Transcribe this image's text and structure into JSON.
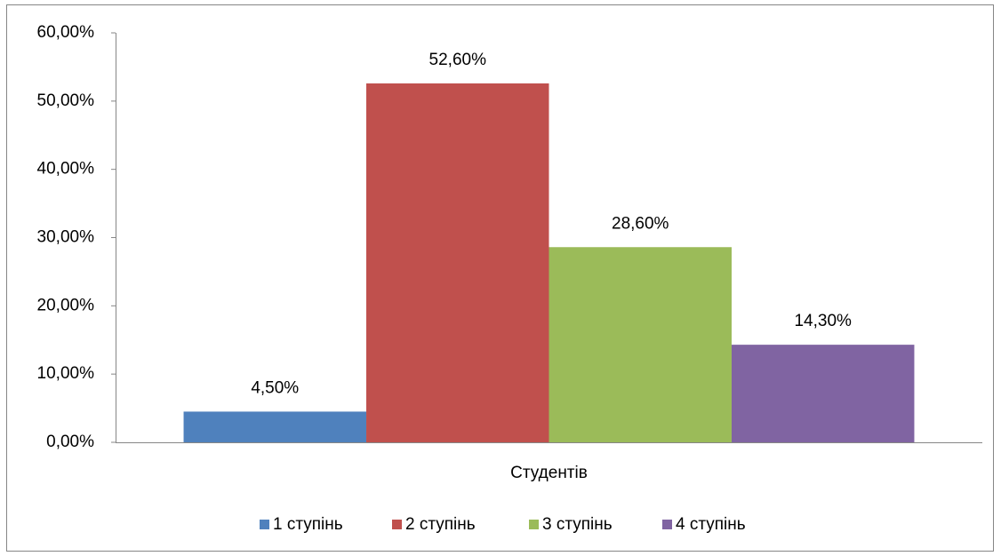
{
  "chart_data": {
    "type": "bar",
    "categories": [
      "Студентів"
    ],
    "series": [
      {
        "name": "1 ступінь",
        "color": "#4f81bd",
        "values": [
          4.5
        ],
        "value_labels": [
          "4,50%"
        ]
      },
      {
        "name": "2 ступінь",
        "color": "#c0504d",
        "values": [
          52.6
        ],
        "value_labels": [
          "52,60%"
        ]
      },
      {
        "name": "3 ступінь",
        "color": "#9bbb59",
        "values": [
          28.6
        ],
        "value_labels": [
          "28,60%"
        ]
      },
      {
        "name": "4 ступінь",
        "color": "#8064a2",
        "values": [
          14.3
        ],
        "value_labels": [
          "14,30%"
        ]
      }
    ],
    "ylim": [
      0,
      60
    ],
    "yticks": [
      {
        "value": 0,
        "label": "0,00%"
      },
      {
        "value": 10,
        "label": "10,00%"
      },
      {
        "value": 20,
        "label": "20,00%"
      },
      {
        "value": 30,
        "label": "30,00%"
      },
      {
        "value": 40,
        "label": "40,00%"
      },
      {
        "value": 50,
        "label": "50,00%"
      },
      {
        "value": 60,
        "label": "60,00%"
      }
    ],
    "grid": false,
    "legend": "bottom"
  }
}
